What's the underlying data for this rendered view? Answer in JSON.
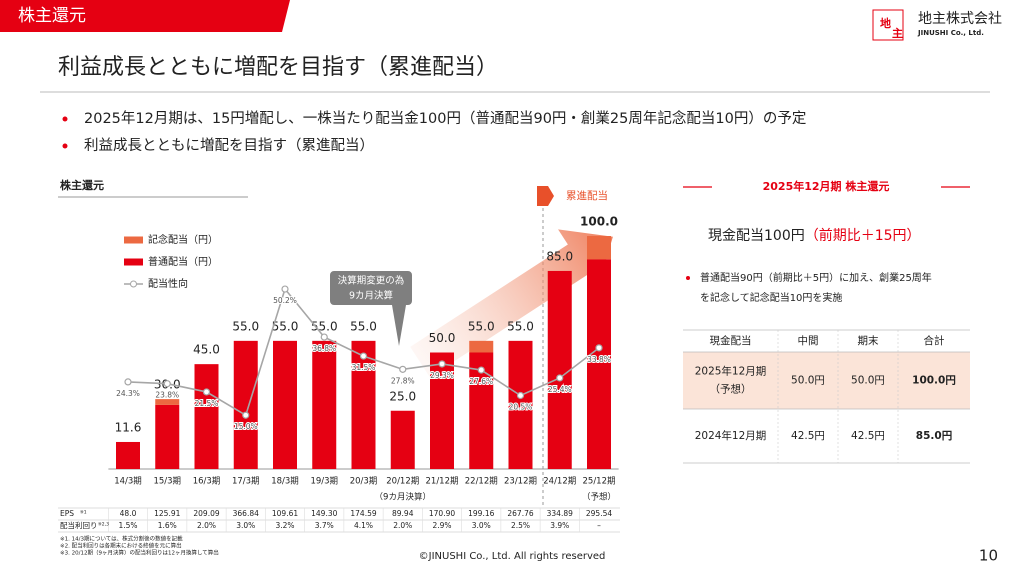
{
  "header": {
    "tab": "株主還元",
    "title": "利益成長とともに増配を目指す（累進配当）",
    "logo_mark": [
      "地",
      "主"
    ],
    "company": "地主株式会社",
    "company_en": "JINUSHI Co., Ltd."
  },
  "bullets": [
    "2025年12月期は、15円増配し、一株当たり配当金100円（普通配当90円・創業25周年記念配当10円）の予定",
    "利益成長とともに増配を目指す（累進配当）"
  ],
  "chart_data": {
    "type": "bar",
    "stacked": true,
    "title": "株主還元",
    "categories": [
      "14/3期",
      "15/3期",
      "16/3期",
      "17/3期",
      "18/3期",
      "19/3期",
      "20/3期",
      "20/12期",
      "21/12期",
      "22/12期",
      "23/12期",
      "24/12期",
      "25/12期"
    ],
    "category_notes": [
      null,
      null,
      null,
      null,
      null,
      null,
      null,
      "（9カ月決算）",
      null,
      null,
      null,
      null,
      "（予想）"
    ],
    "ylim": [
      0,
      100
    ],
    "y2lim": [
      0,
      65
    ],
    "series": [
      {
        "name": "普通配当（円）",
        "color": "#e50012",
        "values": [
          11.6,
          27.5,
          45,
          55,
          55,
          55,
          55,
          25,
          50,
          50,
          55,
          85,
          90
        ]
      },
      {
        "name": "記念配当（円）",
        "color": "#ec6941",
        "values": [
          null,
          2.5,
          null,
          null,
          null,
          null,
          null,
          null,
          null,
          5,
          null,
          null,
          10
        ]
      },
      {
        "name": "配当性向",
        "type": "line",
        "axis": "y2",
        "color": "#a6a6a6",
        "values": [
          24.3,
          23.8,
          21.5,
          15.0,
          50.2,
          36.8,
          31.5,
          27.8,
          29.3,
          27.6,
          20.5,
          25.4,
          33.8
        ],
        "value_labels": [
          "24.3%",
          "23.8%",
          "21.5%",
          "15.0%",
          "50.2%",
          "36.8%",
          "31.5%",
          "27.8%",
          "29.3%",
          "27.6%",
          "20.5%",
          "25.4%",
          "33.8%"
        ]
      }
    ],
    "totals": {
      "values": [
        11.6,
        30,
        45,
        55,
        55,
        55,
        55,
        25,
        50,
        55,
        55,
        85,
        100
      ],
      "value_labels": [
        "11.6",
        "30.0",
        "45.0",
        "55.0",
        "55.0",
        "55.0",
        "55.0",
        "25.0",
        "50.0",
        "55.0",
        "55.0",
        "85.0",
        "100.0"
      ]
    },
    "annotations": {
      "callout": [
        "決算期変更の為",
        "9カ月決算"
      ],
      "progressive": "累進配当"
    },
    "table": {
      "rows": [
        {
          "label": "EPS",
          "note": "※1",
          "cells": [
            "48.0",
            "125.91",
            "209.09",
            "366.84",
            "109.61",
            "149.30",
            "174.59",
            "89.94",
            "170.90",
            "199.16",
            "267.76",
            "334.89",
            "295.54"
          ]
        },
        {
          "label": "配当利回り",
          "note": "※2,3",
          "cells": [
            "1.5%",
            "1.6%",
            "2.0%",
            "3.0%",
            "3.2%",
            "3.7%",
            "4.1%",
            "2.0%",
            "2.9%",
            "3.0%",
            "2.5%",
            "3.9%",
            "–"
          ]
        }
      ]
    },
    "footnotes": [
      "※1. 14/3期については、株式分割後の数値を記載",
      "※2. 配当利回りは各期末における終値を元に算出",
      "※3. 20/12期（9ヶ月決算）の配当利回りは12ヶ月換算して算出"
    ]
  },
  "panel": {
    "title": "2025年12月期 株主還元",
    "headline": "現金配当100円",
    "headline_note": "（前期比＋15円）",
    "bullet": [
      "普通配当90円（前期比＋5円）に加え、創業25周年",
      "を記念して記念配当10円を実施"
    ],
    "table": {
      "header": [
        "現金配当",
        "中間",
        "期末",
        "合計"
      ],
      "rows": [
        {
          "label": [
            "2025年12月期",
            "（予想）"
          ],
          "cells": [
            "50.0円",
            "50.0円",
            "100.0円"
          ]
        },
        {
          "label": [
            "2024年12月期"
          ],
          "cells": [
            "42.5円",
            "42.5円",
            "85.0円"
          ]
        }
      ]
    }
  },
  "footer": {
    "copyright": "©JINUSHI Co., Ltd. All rights reserved",
    "page": "10"
  }
}
